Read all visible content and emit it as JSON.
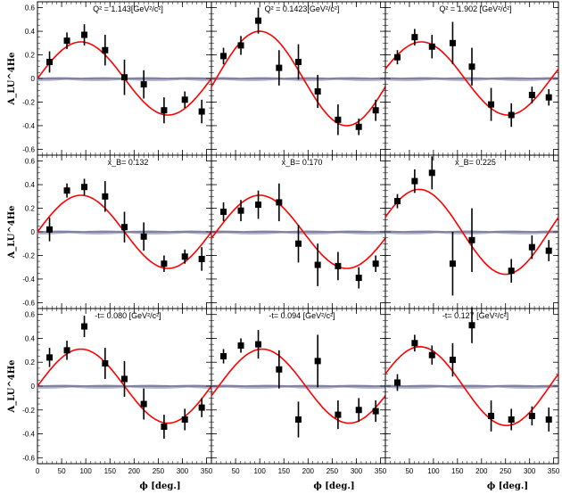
{
  "figure": {
    "y_axis_title": "A_LU^4He",
    "x_axis_title": "ϕ [deg.]",
    "y_tick_labels": [
      "0.6",
      "0.4",
      "0.2",
      "0",
      "-0.2",
      "-0.4",
      "-0.6"
    ],
    "x_tick_labels": [
      "50",
      "100",
      "150",
      "200",
      "250",
      "300",
      "350"
    ],
    "first_x_tick_label": "0",
    "colors": {
      "fit_curve": "#ff0000",
      "systematic_band": "#a0a0c8",
      "points": "#000000",
      "zero_line": "#000000"
    }
  },
  "chart_data": [
    {
      "type": "scatter",
      "row": 0,
      "col": 0,
      "panel_label": "Q² = 1.143[GeV²/c²]",
      "x": [
        25,
        61,
        97,
        140,
        180,
        220,
        262,
        305,
        340
      ],
      "values": [
        0.14,
        0.32,
        0.37,
        0.24,
        0.01,
        -0.05,
        -0.27,
        -0.18,
        -0.28
      ],
      "errors": [
        0.09,
        0.07,
        0.09,
        0.13,
        0.15,
        0.12,
        0.11,
        0.07,
        0.1
      ],
      "fit": {
        "A": 0.31,
        "phase": 0
      },
      "xlim": [
        0,
        360
      ],
      "ylim": [
        -0.65,
        0.65
      ]
    },
    {
      "type": "scatter",
      "row": 0,
      "col": 1,
      "panel_label": "Q² = 0.1423[GeV²/c²]",
      "x": [
        25,
        61,
        97,
        140,
        180,
        220,
        262,
        305,
        340
      ],
      "values": [
        0.19,
        0.28,
        0.49,
        0.09,
        0.14,
        -0.11,
        -0.35,
        -0.41,
        -0.27
      ],
      "errors": [
        0.07,
        0.08,
        0.11,
        0.15,
        0.15,
        0.14,
        0.13,
        0.07,
        0.09
      ],
      "fit": {
        "A": 0.4,
        "phase": -10
      },
      "xlim": [
        0,
        360
      ],
      "ylim": [
        -0.65,
        0.65
      ]
    },
    {
      "type": "scatter",
      "row": 0,
      "col": 2,
      "panel_label": "Q² = 1.902 [GeV²/c²]",
      "x": [
        25,
        61,
        97,
        140,
        180,
        220,
        262,
        305,
        340
      ],
      "values": [
        0.18,
        0.35,
        0.27,
        0.3,
        0.1,
        -0.22,
        -0.31,
        -0.14,
        -0.16
      ],
      "errors": [
        0.06,
        0.07,
        0.1,
        0.18,
        0.16,
        0.14,
        0.1,
        0.07,
        0.07
      ],
      "fit": {
        "A": 0.31,
        "phase": 15
      },
      "xlim": [
        0,
        360
      ],
      "ylim": [
        -0.65,
        0.65
      ]
    },
    {
      "type": "scatter",
      "row": 1,
      "col": 0,
      "panel_label": "x_B= 0.132",
      "x": [
        25,
        61,
        97,
        140,
        180,
        220,
        262,
        305,
        340
      ],
      "values": [
        0.02,
        0.35,
        0.38,
        0.3,
        0.04,
        -0.04,
        -0.27,
        -0.21,
        -0.23
      ],
      "errors": [
        0.1,
        0.06,
        0.07,
        0.13,
        0.13,
        0.12,
        0.07,
        0.06,
        0.1
      ],
      "fit": {
        "A": 0.31,
        "phase": 0
      },
      "xlim": [
        0,
        360
      ],
      "ylim": [
        -0.65,
        0.65
      ]
    },
    {
      "type": "scatter",
      "row": 1,
      "col": 1,
      "panel_label": "x_B= 0.170",
      "x": [
        25,
        61,
        97,
        140,
        180,
        220,
        262,
        305,
        340
      ],
      "values": [
        0.17,
        0.18,
        0.23,
        0.25,
        -0.1,
        -0.28,
        -0.29,
        -0.39,
        -0.27
      ],
      "errors": [
        0.08,
        0.09,
        0.12,
        0.16,
        0.16,
        0.18,
        0.12,
        0.09,
        0.07
      ],
      "fit": {
        "A": 0.31,
        "phase": -10
      },
      "xlim": [
        0,
        360
      ],
      "ylim": [
        -0.65,
        0.65
      ]
    },
    {
      "type": "scatter",
      "row": 1,
      "col": 2,
      "panel_label": "x_B= 0.225",
      "x": [
        25,
        61,
        97,
        140,
        180,
        220,
        262,
        305,
        340
      ],
      "values": [
        0.26,
        0.43,
        0.5,
        -0.27,
        -0.07,
        null,
        -0.33,
        -0.13,
        -0.16
      ],
      "errors": [
        0.06,
        0.1,
        0.14,
        0.27,
        0.27,
        0,
        0.1,
        0.1,
        0.09
      ],
      "fit": {
        "A": 0.36,
        "phase": 20
      },
      "xlim": [
        0,
        360
      ],
      "ylim": [
        -0.65,
        0.65
      ]
    },
    {
      "type": "scatter",
      "row": 2,
      "col": 0,
      "panel_label": "-t= 0.080 [GeV²/c²]",
      "x": [
        25,
        61,
        97,
        140,
        180,
        220,
        262,
        305,
        340
      ],
      "values": [
        0.24,
        0.3,
        0.5,
        0.19,
        0.06,
        -0.15,
        -0.34,
        -0.28,
        -0.18
      ],
      "errors": [
        0.08,
        0.08,
        0.09,
        0.13,
        0.15,
        0.13,
        0.1,
        0.09,
        0.08
      ],
      "fit": {
        "A": 0.31,
        "phase": 0
      },
      "xlim": [
        0,
        360
      ],
      "ylim": [
        -0.65,
        0.65
      ]
    },
    {
      "type": "scatter",
      "row": 2,
      "col": 1,
      "panel_label": "-t= 0.094 [GeV²/c²]",
      "x": [
        25,
        61,
        97,
        140,
        180,
        220,
        262,
        305,
        340
      ],
      "values": [
        0.25,
        0.34,
        0.35,
        0.14,
        -0.28,
        0.21,
        -0.24,
        -0.2,
        -0.21
      ],
      "errors": [
        0.06,
        0.06,
        0.12,
        0.16,
        0.15,
        0.22,
        0.12,
        0.1,
        0.09
      ],
      "fit": {
        "A": 0.31,
        "phase": -15
      },
      "xlim": [
        0,
        360
      ],
      "ylim": [
        -0.65,
        0.65
      ]
    },
    {
      "type": "scatter",
      "row": 2,
      "col": 2,
      "panel_label": "-t= 0.127 [GeV²/c²]",
      "x": [
        25,
        61,
        97,
        140,
        180,
        220,
        262,
        305,
        340
      ],
      "values": [
        0.03,
        0.36,
        0.26,
        0.22,
        0.51,
        -0.25,
        -0.28,
        -0.25,
        -0.28
      ],
      "errors": [
        0.07,
        0.07,
        0.08,
        0.14,
        0.15,
        0.13,
        0.09,
        0.08,
        0.1
      ],
      "fit": {
        "A": 0.33,
        "phase": 18
      },
      "xlim": [
        0,
        360
      ],
      "ylim": [
        -0.65,
        0.65
      ]
    }
  ]
}
